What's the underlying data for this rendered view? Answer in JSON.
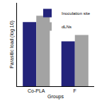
{
  "chart_data": {
    "type": "bar",
    "x_label": "Groups",
    "y_label": "Parasitic load (log 10)",
    "categories": [
      "Co-PLA",
      "F"
    ],
    "series": [
      {
        "name": "Inoculation site",
        "color": "#23237a",
        "values": [
          10,
          7
        ]
      },
      {
        "name": "dLNs",
        "color": "#a3a3a3",
        "values": [
          11,
          8
        ]
      }
    ],
    "ylim": [
      0,
      13
    ],
    "yticks": [],
    "tick_labels": "x",
    "legend": "top-right",
    "grid": false
  }
}
